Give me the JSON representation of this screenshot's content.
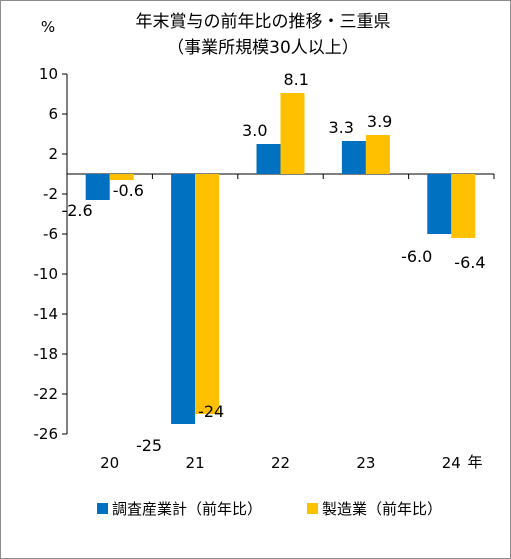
{
  "chart_data": {
    "type": "bar",
    "title": "年末賞与の前年比の推移・三重県",
    "subtitle": "（事業所規模30人以上）",
    "ylabel": "%",
    "xlabel": "年",
    "categories": [
      "20",
      "21",
      "22",
      "23",
      "24"
    ],
    "ylim": [
      -26,
      10
    ],
    "yticks": [
      10,
      6,
      2,
      -2,
      -6,
      -10,
      -14,
      -18,
      -22,
      -26
    ],
    "series": [
      {
        "name": "調査産業計（前年比）",
        "color": "#0070c0",
        "values": [
          -2.6,
          -25,
          3.0,
          3.3,
          -6.0
        ],
        "labels": [
          "-2.6",
          "-25",
          "3.0",
          "3.3",
          "-6.0"
        ]
      },
      {
        "name": "製造業（前年比）",
        "color": "#ffc000",
        "values": [
          -0.6,
          -24,
          8.1,
          3.9,
          -6.4
        ],
        "labels": [
          "-0.6",
          "-24",
          "8.1",
          "3.9",
          "-6.4"
        ]
      }
    ],
    "grid": false,
    "legend_position": "bottom"
  }
}
